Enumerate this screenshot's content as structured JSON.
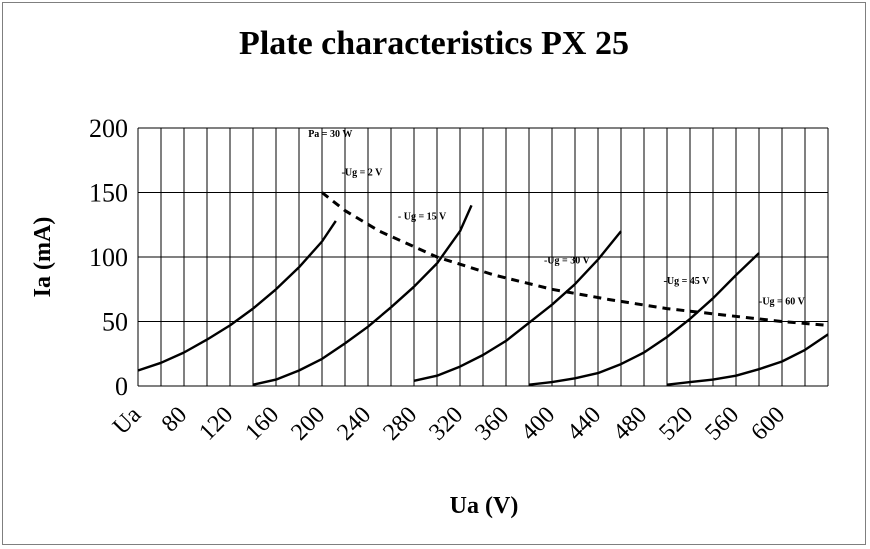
{
  "chart_data": {
    "type": "line",
    "title": "Plate characteristics PX 25",
    "xlabel": "Ua (V)",
    "ylabel": "Ia (mA)",
    "x_tick_labels": [
      "Ua",
      "80",
      "120",
      "160",
      "200",
      "240",
      "280",
      "320",
      "360",
      "400",
      "440",
      "480",
      "520",
      "560",
      "600"
    ],
    "y_tick_labels": [
      "0",
      "50",
      "100",
      "150",
      "200"
    ],
    "xlim": [
      40,
      640
    ],
    "ylim": [
      0,
      200
    ],
    "grid": true,
    "series": [
      {
        "name": "-Ug = 2 V",
        "x": [
          40,
          60,
          80,
          100,
          120,
          140,
          160,
          180,
          200,
          212
        ],
        "y": [
          12,
          18,
          26,
          36,
          47,
          60,
          75,
          92,
          112,
          128
        ]
      },
      {
        "name": "- Ug = 15 V",
        "x": [
          140,
          160,
          180,
          200,
          220,
          240,
          260,
          280,
          300,
          320,
          330
        ],
        "y": [
          1,
          5,
          12,
          21,
          33,
          46,
          61,
          77,
          95,
          120,
          140
        ]
      },
      {
        "name": "-Ug = 30 V",
        "x": [
          280,
          300,
          320,
          340,
          360,
          380,
          400,
          420,
          440,
          460
        ],
        "y": [
          4,
          8,
          15,
          24,
          35,
          49,
          63,
          79,
          98,
          120
        ]
      },
      {
        "name": "-Ug = 45 V",
        "x": [
          380,
          400,
          420,
          440,
          460,
          480,
          500,
          520,
          540,
          560,
          580
        ],
        "y": [
          1,
          3,
          6,
          10,
          17,
          26,
          38,
          52,
          68,
          86,
          103
        ]
      },
      {
        "name": "-Ug = 60 V",
        "x": [
          500,
          520,
          540,
          560,
          580,
          600,
          620,
          640
        ],
        "y": [
          1,
          3,
          5,
          8,
          13,
          19,
          28,
          40
        ]
      },
      {
        "name": "Pa = 30 W",
        "style": "dashed",
        "x": [
          200,
          220,
          250,
          300,
          350,
          400,
          450,
          500,
          550,
          600,
          640
        ],
        "y": [
          150,
          136,
          120,
          100,
          86,
          75,
          67,
          60,
          55,
          50,
          47
        ]
      }
    ],
    "annotations": [
      {
        "text": "Pa = 30 W",
        "x": 188,
        "y": 193
      },
      {
        "text": "-Ug = 2 V",
        "x": 217,
        "y": 163
      },
      {
        "text": "- Ug = 15 V",
        "x": 266,
        "y": 129
      },
      {
        "text": "-Ug = 30 V",
        "x": 393,
        "y": 95
      },
      {
        "text": "-Ug = 45 V",
        "x": 497,
        "y": 79
      },
      {
        "text": "-Ug = 60 V",
        "x": 580,
        "y": 63
      }
    ]
  }
}
